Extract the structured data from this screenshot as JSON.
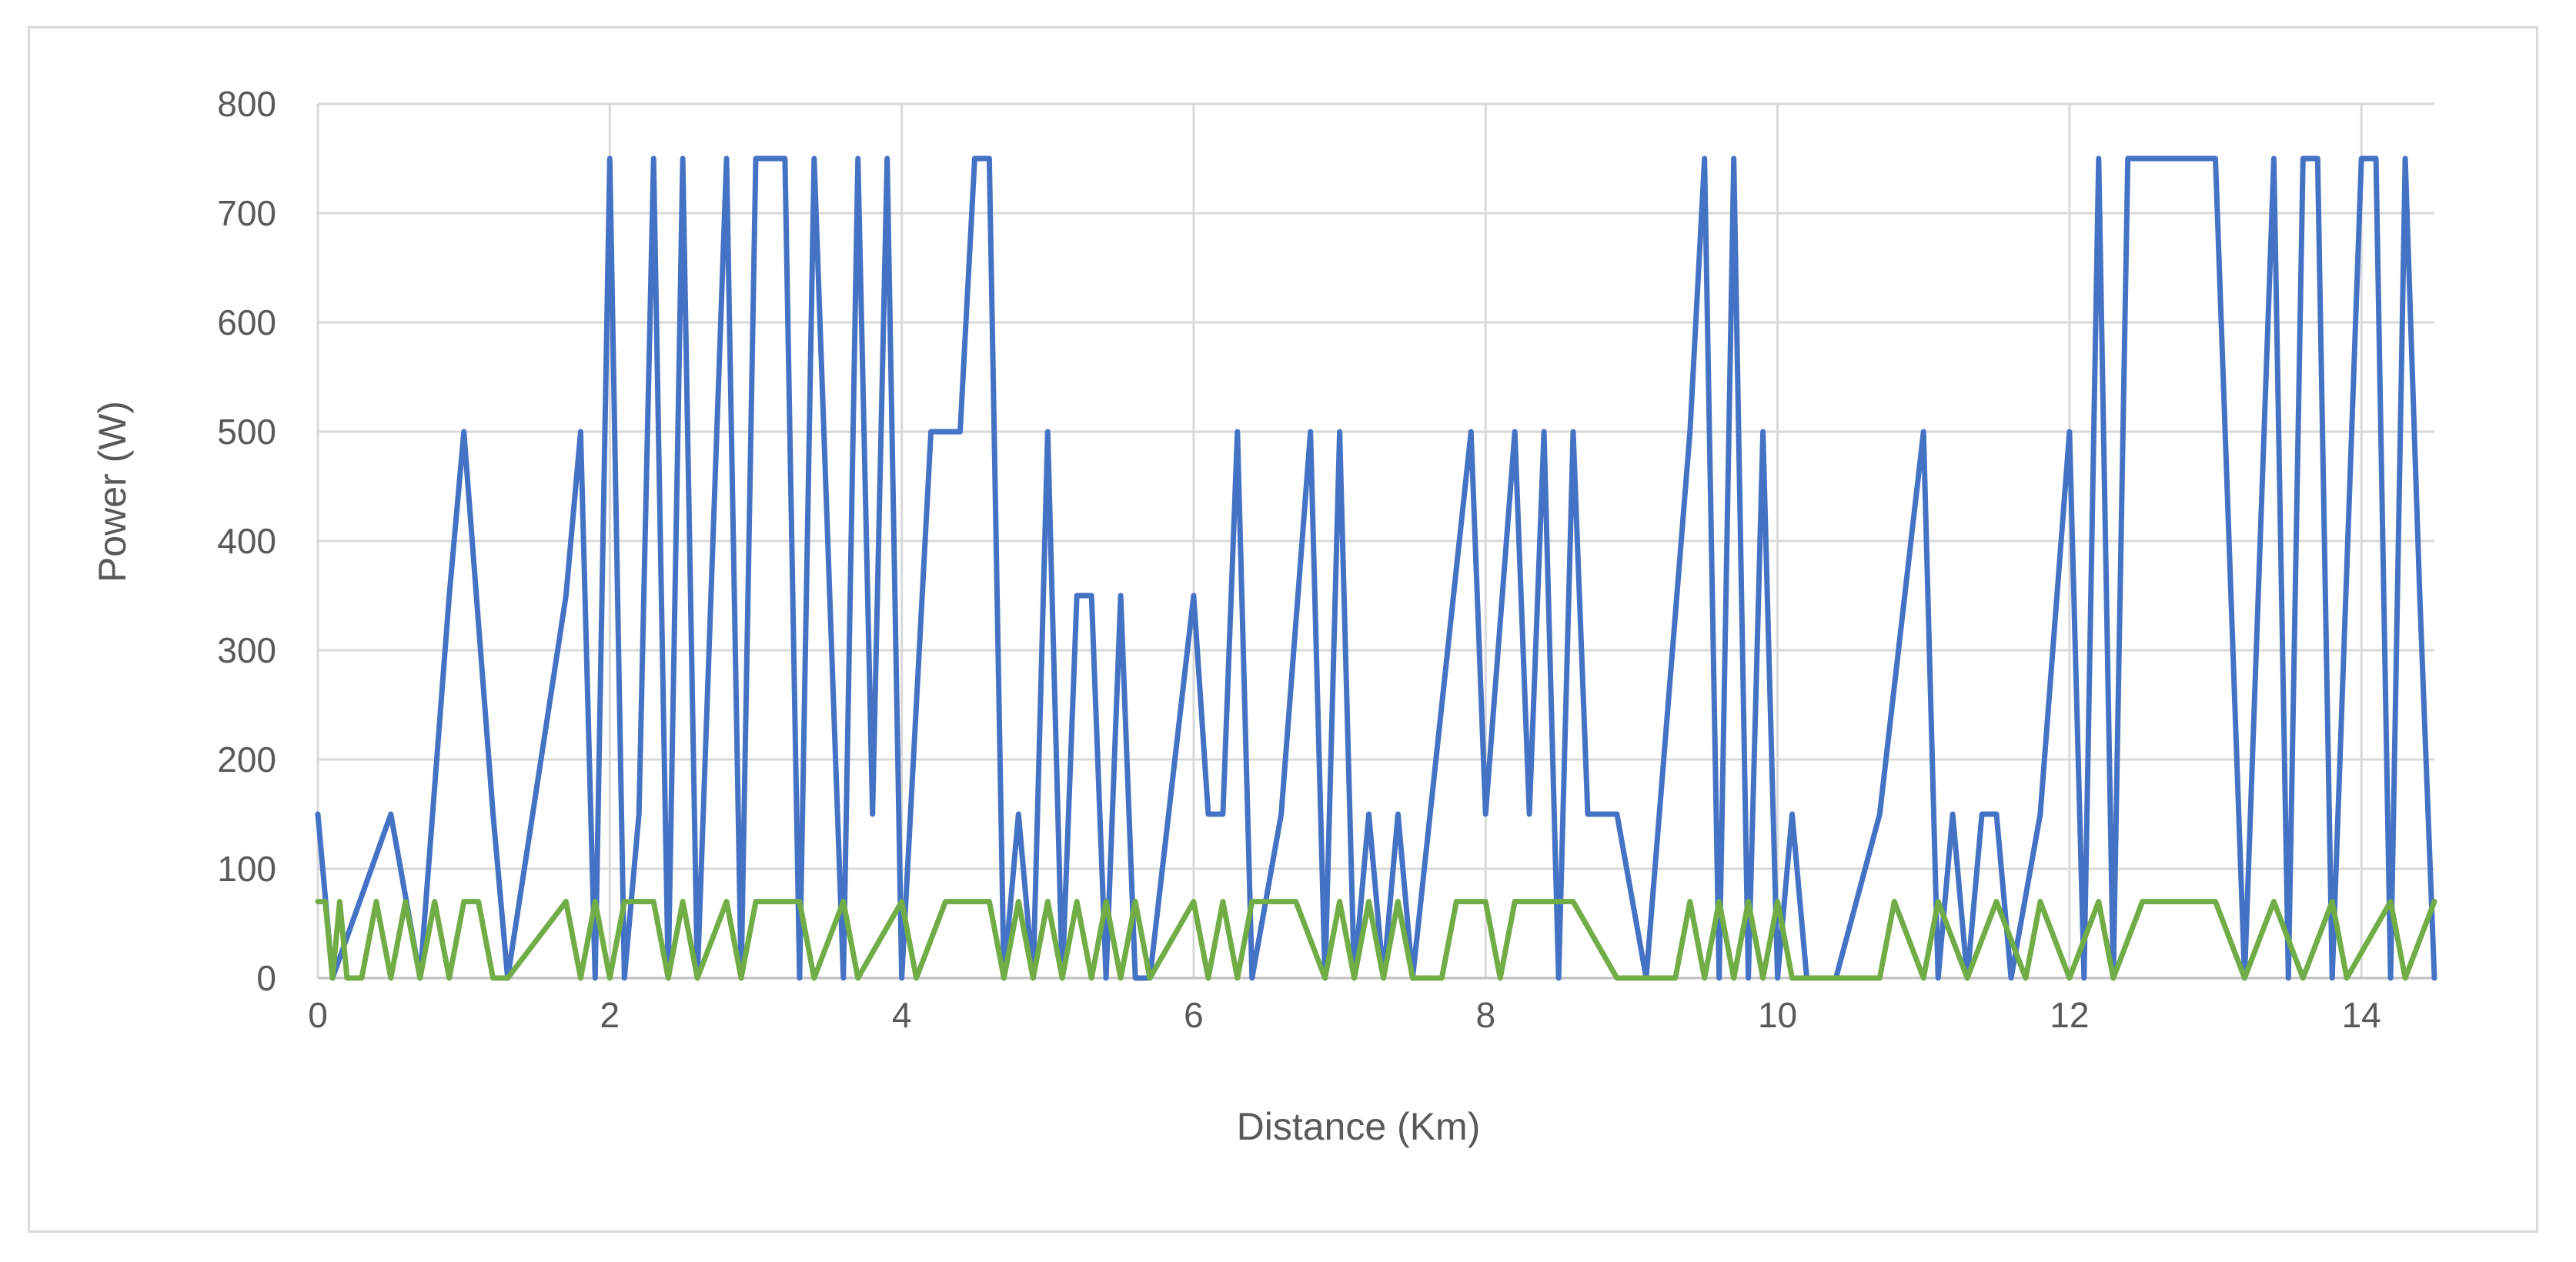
{
  "chart_data": {
    "type": "line",
    "xlabel": "Distance (Km)",
    "ylabel": "Power (W)",
    "xlim": [
      0,
      14.5
    ],
    "ylim": [
      0,
      800
    ],
    "xticks": [
      0,
      2,
      4,
      6,
      8,
      10,
      12,
      14
    ],
    "yticks": [
      0,
      100,
      200,
      300,
      400,
      500,
      600,
      700,
      800
    ],
    "grid": true,
    "legend": "none",
    "series": [
      {
        "color": "#4472c4",
        "x": [
          0,
          0.1,
          0.5,
          0.7,
          0.9,
          1.0,
          1.2,
          1.3,
          1.7,
          1.8,
          1.9,
          2.0,
          2.1,
          2.2,
          2.3,
          2.4,
          2.5,
          2.6,
          2.8,
          2.9,
          3.0,
          3.2,
          3.3,
          3.4,
          3.6,
          3.7,
          3.8,
          3.9,
          4.0,
          4.2,
          4.3,
          4.4,
          4.5,
          4.6,
          4.7,
          4.8,
          4.9,
          5.0,
          5.1,
          5.2,
          5.3,
          5.4,
          5.5,
          5.6,
          5.7,
          6.0,
          6.1,
          6.2,
          6.3,
          6.4,
          6.6,
          6.8,
          6.9,
          7.0,
          7.1,
          7.2,
          7.3,
          7.4,
          7.5,
          7.9,
          8.0,
          8.2,
          8.3,
          8.4,
          8.5,
          8.6,
          8.7,
          8.9,
          9.1,
          9.4,
          9.5,
          9.6,
          9.7,
          9.8,
          9.9,
          10.0,
          10.1,
          10.2,
          10.4,
          10.7,
          11.0,
          11.1,
          11.2,
          11.3,
          11.4,
          11.5,
          11.6,
          11.8,
          12.0,
          12.1,
          12.2,
          12.3,
          12.4,
          12.6,
          12.9,
          13.0,
          13.2,
          13.4,
          13.5,
          13.6,
          13.7,
          13.8,
          14.0,
          14.1,
          14.2,
          14.3,
          14.4,
          14.5
        ],
        "values": [
          150,
          0,
          150,
          0,
          350,
          500,
          150,
          0,
          350,
          500,
          0,
          750,
          0,
          150,
          750,
          0,
          750,
          0,
          750,
          0,
          750,
          750,
          0,
          750,
          0,
          750,
          150,
          750,
          0,
          500,
          500,
          500,
          750,
          750,
          0,
          150,
          0,
          500,
          0,
          350,
          350,
          0,
          350,
          0,
          0,
          350,
          150,
          150,
          500,
          0,
          150,
          500,
          0,
          500,
          0,
          150,
          0,
          150,
          0,
          500,
          150,
          500,
          150,
          500,
          0,
          500,
          150,
          150,
          0,
          500,
          750,
          0,
          750,
          0,
          500,
          0,
          150,
          0,
          0,
          150,
          500,
          0,
          150,
          0,
          150,
          150,
          0,
          150,
          500,
          0,
          750,
          0,
          750,
          750,
          750,
          750,
          0,
          750,
          0,
          750,
          750,
          0,
          750,
          750,
          0,
          750,
          350,
          0
        ]
      },
      {
        "color": "#70ad47",
        "x": [
          0,
          0.05,
          0.1,
          0.15,
          0.2,
          0.3,
          0.4,
          0.5,
          0.6,
          0.7,
          0.8,
          0.9,
          1.0,
          1.1,
          1.2,
          1.3,
          1.7,
          1.8,
          1.9,
          2.0,
          2.1,
          2.3,
          2.4,
          2.5,
          2.6,
          2.8,
          2.9,
          3.0,
          3.3,
          3.4,
          3.6,
          3.7,
          4.0,
          4.1,
          4.3,
          4.6,
          4.7,
          4.8,
          4.9,
          5.0,
          5.1,
          5.2,
          5.3,
          5.4,
          5.5,
          5.6,
          5.7,
          6.0,
          6.1,
          6.2,
          6.3,
          6.4,
          6.7,
          6.9,
          7.0,
          7.1,
          7.2,
          7.3,
          7.4,
          7.5,
          7.7,
          7.8,
          8.0,
          8.1,
          8.2,
          8.3,
          8.6,
          8.9,
          9.0,
          9.2,
          9.3,
          9.4,
          9.5,
          9.6,
          9.7,
          9.8,
          9.9,
          10.0,
          10.1,
          10.4,
          10.7,
          10.8,
          11.0,
          11.1,
          11.3,
          11.5,
          11.7,
          11.8,
          12.0,
          12.2,
          12.3,
          12.5,
          12.6,
          13.0,
          13.2,
          13.4,
          13.6,
          13.8,
          13.9,
          14.2,
          14.3,
          14.5
        ],
        "values": [
          70,
          70,
          0,
          70,
          0,
          0,
          70,
          0,
          70,
          0,
          70,
          0,
          70,
          70,
          0,
          0,
          70,
          0,
          70,
          0,
          70,
          70,
          0,
          70,
          0,
          70,
          0,
          70,
          70,
          0,
          70,
          0,
          70,
          0,
          70,
          70,
          0,
          70,
          0,
          70,
          0,
          70,
          0,
          70,
          0,
          70,
          0,
          70,
          0,
          70,
          0,
          70,
          70,
          0,
          70,
          0,
          70,
          0,
          70,
          0,
          0,
          70,
          70,
          0,
          70,
          70,
          70,
          0,
          0,
          0,
          0,
          70,
          0,
          70,
          0,
          70,
          0,
          70,
          0,
          0,
          0,
          70,
          0,
          70,
          0,
          70,
          0,
          70,
          0,
          70,
          0,
          70,
          70,
          70,
          0,
          70,
          0,
          70,
          0,
          70,
          0,
          70
        ]
      }
    ]
  }
}
